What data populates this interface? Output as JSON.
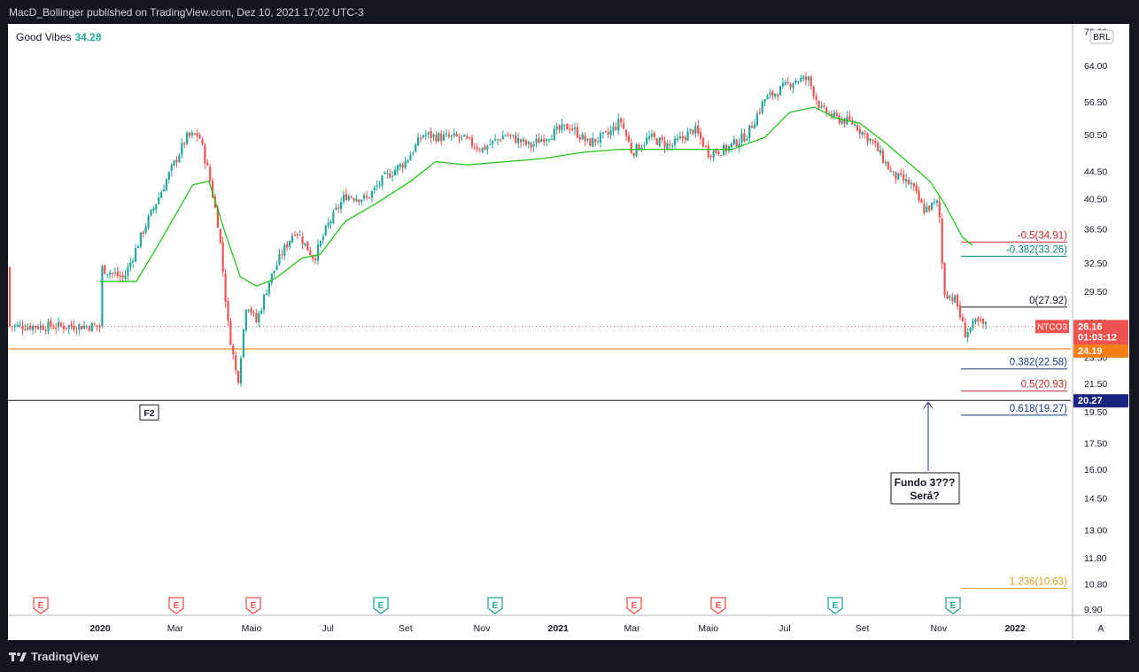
{
  "header": {
    "text": "MacD_Bollinger published on TradingView.com, Dez 10, 2021 17:02 UTC-3"
  },
  "footer": {
    "brand": "TradingView"
  },
  "legend": {
    "name": "Good Vibes",
    "value": "34.28"
  },
  "currency": "BRL",
  "auto_label": "A",
  "colors": {
    "up": "#26a69a",
    "down": "#ef5350",
    "ma": "#22c71a",
    "orange": "#f57f17",
    "navy": "#1a237e"
  },
  "chart_data": {
    "type": "candlestick",
    "symbol": "NTCO3",
    "log_scale": true,
    "y_ticks": [
      9.9,
      10.8,
      11.8,
      13.0,
      14.5,
      16.0,
      17.5,
      19.5,
      21.5,
      23.5,
      26.5,
      29.5,
      32.5,
      36.5,
      40.5,
      44.5,
      50.5,
      56.5,
      64.0,
      72.0
    ],
    "y_tick_labels": [
      "9.90",
      "10.80",
      "11.80",
      "13.00",
      "14.50",
      "16.00",
      "17.50",
      "19.50",
      "21.50",
      "23.50",
      "26.50",
      "29.50",
      "32.50",
      "36.50",
      "40.50",
      "44.50",
      "50.50",
      "56.50",
      "64.00",
      "72.00"
    ],
    "x_labels": [
      "2020",
      "Mar",
      "Maio",
      "Jul",
      "Set",
      "Nov",
      "2021",
      "Mar",
      "Maio",
      "Jul",
      "Set",
      "Nov",
      "2022"
    ],
    "x_bold": [
      "2020",
      "2021",
      "2022"
    ],
    "last_price": "26.16",
    "countdown": "01:03:12",
    "orange_level": "24.19",
    "navy_level": "20.27",
    "fib_levels": [
      {
        "label": "-0.5(34.91)",
        "value": 34.91,
        "color": "#c62828"
      },
      {
        "label": "-0.382(33.26)",
        "value": 33.26,
        "color": "#00897b"
      },
      {
        "label": "0(27.92)",
        "value": 27.92,
        "color": "#131722"
      },
      {
        "label": "0.382(22.58)",
        "value": 22.58,
        "color": "#1a3a7a"
      },
      {
        "label": "0.5(20.93)",
        "value": 20.93,
        "color": "#c62828"
      },
      {
        "label": "0.618(19.27)",
        "value": 19.27,
        "color": "#1a3a7a"
      },
      {
        "label": "1.236(10.63)",
        "value": 10.63,
        "color": "#d4a017"
      }
    ],
    "price_path": [
      [
        "2020-01-01",
        32.0
      ],
      [
        "2020-01-20",
        30.8
      ],
      [
        "2020-02-05",
        36.5
      ],
      [
        "2020-02-25",
        44.0
      ],
      [
        "2020-03-10",
        50.0
      ],
      [
        "2020-03-20",
        50.5
      ],
      [
        "2020-03-28",
        44.0
      ],
      [
        "2020-04-05",
        36.5
      ],
      [
        "2020-04-12",
        26.5
      ],
      [
        "2020-04-20",
        21.5
      ],
      [
        "2020-04-27",
        28.5
      ],
      [
        "2020-05-05",
        26.5
      ],
      [
        "2020-05-15",
        30.5
      ],
      [
        "2020-05-25",
        33.5
      ],
      [
        "2020-06-05",
        36.5
      ],
      [
        "2020-06-20",
        33.0
      ],
      [
        "2020-07-01",
        37.0
      ],
      [
        "2020-07-15",
        41.0
      ],
      [
        "2020-08-01",
        40.5
      ],
      [
        "2020-08-15",
        43.5
      ],
      [
        "2020-09-01",
        46.0
      ],
      [
        "2020-09-15",
        50.5
      ],
      [
        "2020-09-30",
        50.0
      ],
      [
        "2020-10-15",
        50.0
      ],
      [
        "2020-11-01",
        48.0
      ],
      [
        "2020-11-20",
        50.5
      ],
      [
        "2020-12-10",
        48.5
      ],
      [
        "2020-12-20",
        50.0
      ],
      [
        "2021-01-10",
        52.0
      ],
      [
        "2021-01-25",
        49.0
      ],
      [
        "2021-02-10",
        50.5
      ],
      [
        "2021-02-20",
        53.0
      ],
      [
        "2021-03-01",
        47.5
      ],
      [
        "2021-03-15",
        50.0
      ],
      [
        "2021-04-01",
        48.5
      ],
      [
        "2021-04-20",
        51.5
      ],
      [
        "2021-05-01",
        47.5
      ],
      [
        "2021-05-15",
        48.0
      ],
      [
        "2021-06-01",
        50.5
      ],
      [
        "2021-06-15",
        57.0
      ],
      [
        "2021-06-25",
        58.5
      ],
      [
        "2021-07-10",
        61.0
      ],
      [
        "2021-07-20",
        61.0
      ],
      [
        "2021-07-30",
        55.0
      ],
      [
        "2021-08-10",
        53.5
      ],
      [
        "2021-08-25",
        52.5
      ],
      [
        "2021-09-10",
        49.0
      ],
      [
        "2021-09-25",
        44.0
      ],
      [
        "2021-10-10",
        42.5
      ],
      [
        "2021-10-20",
        39.0
      ],
      [
        "2021-11-01",
        40.0
      ],
      [
        "2021-11-05",
        29.5
      ],
      [
        "2021-11-15",
        28.5
      ],
      [
        "2021-11-22",
        25.5
      ],
      [
        "2021-12-01",
        26.5
      ],
      [
        "2021-12-10",
        26.16
      ]
    ],
    "ma_path": [
      [
        "2020-01-01",
        30.5
      ],
      [
        "2020-01-30",
        30.5
      ],
      [
        "2020-02-20",
        35.5
      ],
      [
        "2020-03-15",
        42.5
      ],
      [
        "2020-03-28",
        43.0
      ],
      [
        "2020-04-10",
        36.0
      ],
      [
        "2020-04-22",
        31.0
      ],
      [
        "2020-05-05",
        30.0
      ],
      [
        "2020-05-20",
        30.8
      ],
      [
        "2020-06-10",
        33.0
      ],
      [
        "2020-06-25",
        33.5
      ],
      [
        "2020-07-15",
        37.5
      ],
      [
        "2020-08-10",
        40.0
      ],
      [
        "2020-09-05",
        43.0
      ],
      [
        "2020-09-25",
        46.0
      ],
      [
        "2020-10-20",
        45.5
      ],
      [
        "2020-11-20",
        46.0
      ],
      [
        "2020-12-20",
        46.5
      ],
      [
        "2021-01-20",
        47.5
      ],
      [
        "2021-02-20",
        48.0
      ],
      [
        "2021-03-20",
        48.0
      ],
      [
        "2021-04-20",
        48.0
      ],
      [
        "2021-05-20",
        48.0
      ],
      [
        "2021-06-15",
        50.0
      ],
      [
        "2021-07-05",
        54.5
      ],
      [
        "2021-07-25",
        55.5
      ],
      [
        "2021-08-10",
        53.5
      ],
      [
        "2021-08-30",
        52.5
      ],
      [
        "2021-09-20",
        49.0
      ],
      [
        "2021-10-10",
        45.5
      ],
      [
        "2021-10-25",
        43.0
      ],
      [
        "2021-11-05",
        40.0
      ],
      [
        "2021-11-20",
        35.5
      ],
      [
        "2021-11-28",
        34.5
      ]
    ]
  },
  "annotations": {
    "f2": "F2",
    "fundo_line1": "Fundo 3???",
    "fundo_line2": "Será?"
  }
}
